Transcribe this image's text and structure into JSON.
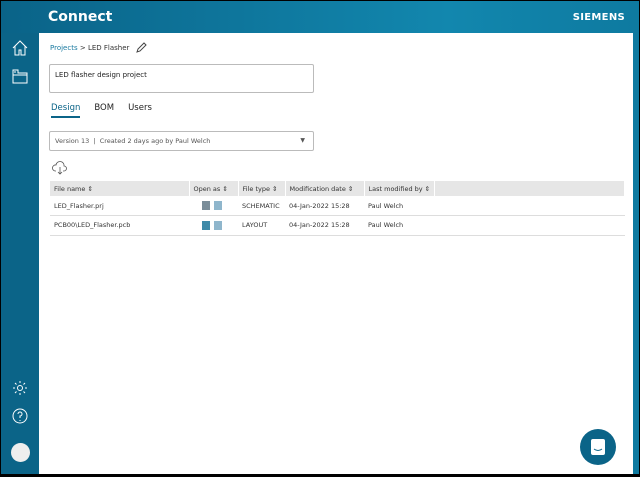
{
  "header": {
    "title": "Connect",
    "brand": "SIEMENS"
  },
  "sidebar": {
    "items": [
      "home-icon",
      "projects-icon"
    ],
    "bottom": [
      "settings-icon",
      "help-icon",
      "user-avatar"
    ]
  },
  "breadcrumb": {
    "root": "Projects",
    "separator": ">",
    "current": "LED Flasher"
  },
  "description": "LED flasher design project",
  "tabs": [
    {
      "label": "Design",
      "active": true
    },
    {
      "label": "BOM"
    },
    {
      "label": "Users"
    }
  ],
  "version": {
    "text": "Version 13  |  Created 2 days ago by Paul Welch"
  },
  "table": {
    "columns": [
      "File name",
      "Open as",
      "File type",
      "Modification date",
      "Last modified by"
    ],
    "rows": [
      {
        "name": "LED_Flasher.prj",
        "type": "SCHEMATIC",
        "date": "04-Jan-2022 15:28",
        "by": "Paul Welch"
      },
      {
        "name": "PCB00\\LED_Flasher.pcb",
        "type": "LAYOUT",
        "date": "04-Jan-2022 15:28",
        "by": "Paul Welch"
      }
    ]
  },
  "colors": {
    "accent": "#0b6488"
  }
}
